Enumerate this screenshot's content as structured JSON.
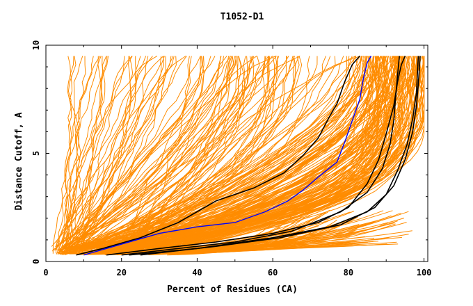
{
  "chart_data": {
    "type": "line",
    "title": "T1052-D1",
    "xlabel": "Percent of Residues (CA)",
    "ylabel": "Distance Cutoff, A",
    "xlim": [
      0,
      101
    ],
    "ylim": [
      0,
      10
    ],
    "x_ticks": [
      0,
      20,
      40,
      60,
      80,
      100
    ],
    "y_ticks": [
      0,
      5,
      10
    ],
    "x_tick_labels": [
      "0",
      "20",
      "40",
      "60",
      "80",
      "100"
    ],
    "y_tick_labels": [
      "0",
      "5",
      "10"
    ],
    "grid": false,
    "colors": {
      "background_models": "#ff8c00",
      "highlight": "#000000",
      "reference": "#0000ff"
    },
    "background_models_count": 260,
    "highlight_series": [
      {
        "color": "#000000",
        "points": [
          [
            8,
            0.3
          ],
          [
            15,
            0.6
          ],
          [
            25,
            1.1
          ],
          [
            35,
            1.8
          ],
          [
            45,
            2.8
          ],
          [
            55,
            3.4
          ],
          [
            63,
            4.1
          ],
          [
            68,
            4.9
          ],
          [
            72,
            5.7
          ],
          [
            75,
            6.7
          ],
          [
            77,
            7.3
          ],
          [
            79,
            8.3
          ],
          [
            81,
            9.1
          ],
          [
            83,
            9.5
          ]
        ]
      },
      {
        "color": "#000000",
        "points": [
          [
            16,
            0.3
          ],
          [
            30,
            0.6
          ],
          [
            45,
            0.9
          ],
          [
            60,
            1.3
          ],
          [
            72,
            1.8
          ],
          [
            80,
            2.5
          ],
          [
            85,
            3.6
          ],
          [
            88,
            4.7
          ],
          [
            90,
            5.9
          ],
          [
            92,
            7.2
          ],
          [
            93,
            8.3
          ],
          [
            94,
            9.1
          ],
          [
            95,
            9.5
          ]
        ]
      },
      {
        "color": "#000000",
        "points": [
          [
            20,
            0.3
          ],
          [
            35,
            0.6
          ],
          [
            50,
            0.9
          ],
          [
            65,
            1.4
          ],
          [
            78,
            2.3
          ],
          [
            85,
            3.2
          ],
          [
            89,
            4.3
          ],
          [
            91,
            5.4
          ],
          [
            92,
            6.5
          ],
          [
            92.5,
            7.6
          ],
          [
            93,
            8.6
          ],
          [
            93.5,
            9.5
          ]
        ]
      },
      {
        "color": "#000000",
        "points": [
          [
            25,
            0.3
          ],
          [
            45,
            0.7
          ],
          [
            62,
            1.1
          ],
          [
            78,
            1.7
          ],
          [
            87,
            2.5
          ],
          [
            92,
            3.5
          ],
          [
            95,
            4.7
          ],
          [
            97,
            6.0
          ],
          [
            98,
            7.2
          ],
          [
            98.5,
            8.2
          ],
          [
            99,
            9.5
          ]
        ]
      },
      {
        "color": "#000000",
        "points": [
          [
            22,
            0.3
          ],
          [
            40,
            0.6
          ],
          [
            60,
            1.1
          ],
          [
            75,
            1.6
          ],
          [
            85,
            2.3
          ],
          [
            90,
            3.1
          ],
          [
            93,
            4.2
          ],
          [
            95.5,
            5.4
          ],
          [
            97,
            6.6
          ],
          [
            98,
            7.8
          ],
          [
            98.5,
            9.5
          ]
        ]
      }
    ],
    "reference_series": [
      {
        "color": "#0000ff",
        "points": [
          [
            10,
            0.3
          ],
          [
            20,
            0.8
          ],
          [
            30,
            1.3
          ],
          [
            40,
            1.6
          ],
          [
            50,
            1.8
          ],
          [
            58,
            2.3
          ],
          [
            64,
            2.8
          ],
          [
            68,
            3.3
          ],
          [
            72,
            3.9
          ],
          [
            77,
            4.6
          ],
          [
            79,
            5.5
          ],
          [
            81,
            6.5
          ],
          [
            83,
            7.5
          ],
          [
            84,
            8.5
          ],
          [
            85,
            9.2
          ],
          [
            86,
            9.5
          ]
        ]
      }
    ]
  }
}
